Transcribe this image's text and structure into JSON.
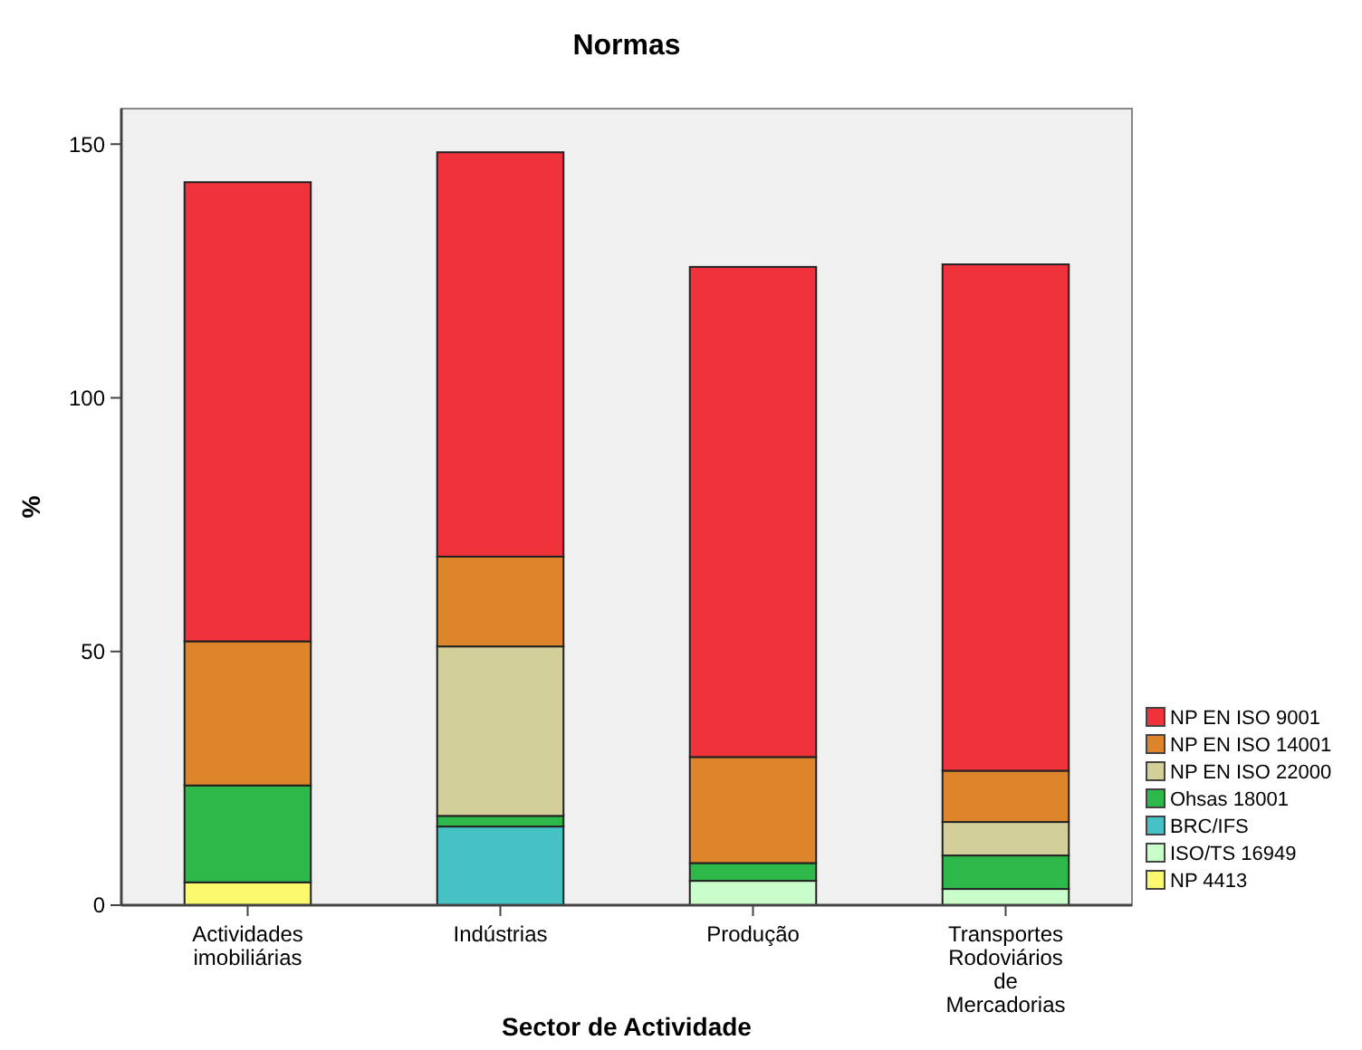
{
  "chart_data": {
    "type": "bar",
    "title": "Normas",
    "xlabel": "Sector de Actividade",
    "ylabel": "%",
    "categories": [
      "Actividades imobiliárias",
      "Indústrias",
      "Produção",
      "Transportes Rodoviários de Mercadorias"
    ],
    "stacked": true,
    "ylim": [
      0,
      157
    ],
    "yticks": [
      0,
      50,
      100,
      150
    ],
    "grid": false,
    "legend": "right",
    "series": [
      {
        "name": "NP 4413",
        "color": "#fbf96e",
        "values": [
          4.5,
          0,
          0,
          0
        ]
      },
      {
        "name": "ISO/TS 16949",
        "color": "#c9fdca",
        "values": [
          0,
          0,
          4.8,
          3.2
        ]
      },
      {
        "name": "BRC/IFS",
        "color": "#47c2c4",
        "values": [
          0,
          15.5,
          0,
          0
        ]
      },
      {
        "name": "Ohsas 18001",
        "color": "#2db84a",
        "values": [
          19.1,
          2.1,
          3.5,
          6.6
        ]
      },
      {
        "name": "NP EN ISO 22000",
        "color": "#d3cf98",
        "values": [
          0,
          33.4,
          0,
          6.6
        ]
      },
      {
        "name": "NP EN ISO 14001",
        "color": "#de852b",
        "values": [
          28.4,
          17.7,
          20.9,
          10.1
        ]
      },
      {
        "name": "NP EN ISO 9001",
        "color": "#f0323a",
        "values": [
          90.5,
          79.7,
          96.6,
          99.8
        ]
      }
    ]
  }
}
